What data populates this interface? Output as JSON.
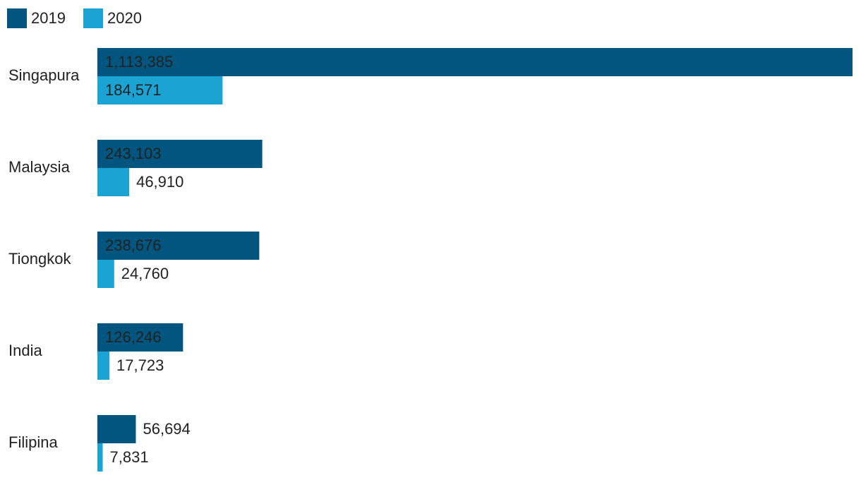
{
  "chart_data": {
    "type": "bar",
    "orientation": "horizontal",
    "categories": [
      "Singapura",
      "Malaysia",
      "Tiongkok",
      "India",
      "Filipina"
    ],
    "series": [
      {
        "name": "2019",
        "color": "#02557e",
        "values": [
          1113385,
          243103,
          238676,
          126246,
          56694
        ],
        "value_labels": [
          "1,113,385",
          "243,103",
          "238,676",
          "126,246",
          "56,694"
        ]
      },
      {
        "name": "2020",
        "color": "#1aa3d3",
        "values": [
          184571,
          46910,
          24760,
          17723,
          7831
        ],
        "value_labels": [
          "184,571",
          "46,910",
          "24,760",
          "17,723",
          "7,831"
        ]
      }
    ]
  }
}
